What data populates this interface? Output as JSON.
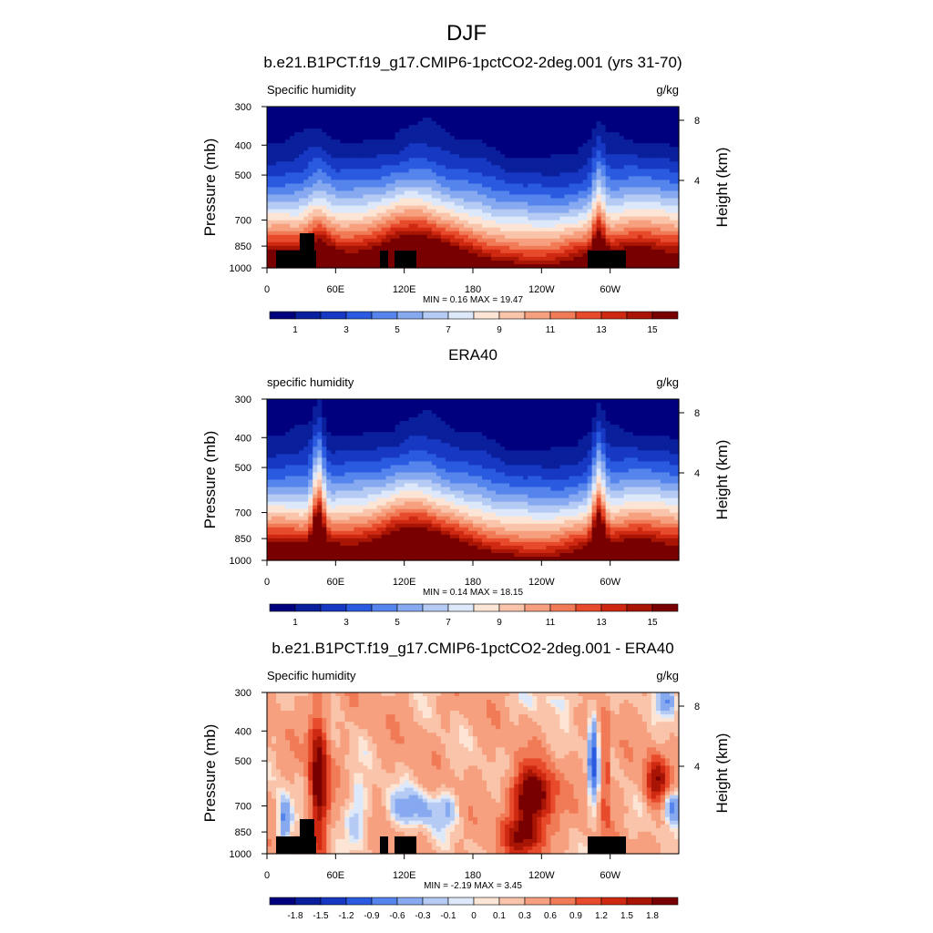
{
  "figure": {
    "title": "DJF"
  },
  "chart_data": [
    {
      "type": "heatmap",
      "title": "b.e21.B1PCT.f19_g17.CMIP6-1pctCO2-2deg.001 (yrs 31-70)",
      "left_label": "Specific humidity",
      "right_label": "g/kg",
      "ylabel": "Pressure (mb)",
      "y2label": "Height (km)",
      "yticks": [
        300,
        400,
        500,
        700,
        850,
        1000
      ],
      "y2ticks": [
        "8",
        "4"
      ],
      "xticks": [
        "0",
        "60E",
        "120E",
        "180",
        "120W",
        "60W"
      ],
      "stats": "MIN =   0.16  MAX =  19.47",
      "colorbar_labels": [
        "1",
        "3",
        "5",
        "7",
        "9",
        "11",
        "13",
        "15"
      ],
      "field": "full"
    },
    {
      "type": "heatmap",
      "title": "ERA40",
      "left_label": "specific humidity",
      "right_label": "g/kg",
      "ylabel": "Pressure (mb)",
      "y2label": "Height (km)",
      "yticks": [
        300,
        400,
        500,
        700,
        850,
        1000
      ],
      "y2ticks": [
        "8",
        "4"
      ],
      "xticks": [
        "0",
        "60E",
        "120E",
        "180",
        "120W",
        "60W"
      ],
      "stats": "MIN =   0.14  MAX =  18.15",
      "colorbar_labels": [
        "1",
        "3",
        "5",
        "7",
        "9",
        "11",
        "13",
        "15"
      ],
      "field": "full"
    },
    {
      "type": "heatmap",
      "title": "b.e21.B1PCT.f19_g17.CMIP6-1pctCO2-2deg.001 - ERA40",
      "left_label": "Specific humidity",
      "right_label": "g/kg",
      "ylabel": "Pressure (mb)",
      "y2label": "Height (km)",
      "yticks": [
        300,
        400,
        500,
        700,
        850,
        1000
      ],
      "y2ticks": [
        "8",
        "4"
      ],
      "xticks": [
        "0",
        "60E",
        "120E",
        "180",
        "120W",
        "60W"
      ],
      "stats": "MIN =  -2.19  MAX =   3.45",
      "colorbar_labels": [
        "-1.8",
        "-1.5",
        "-1.2",
        "-0.9",
        "-0.6",
        "-0.3",
        "-0.1",
        "0",
        "0.1",
        "0.3",
        "0.6",
        "0.9",
        "1.2",
        "1.5",
        "1.8"
      ],
      "field": "diff"
    }
  ],
  "colors": {
    "palette": [
      "#00007f",
      "#0a1f9c",
      "#1638c2",
      "#2a5ae0",
      "#5585ec",
      "#86a9f0",
      "#b5cbf4",
      "#dde9fb",
      "#fde5d6",
      "#f9c4aa",
      "#f6a07f",
      "#f07b56",
      "#e74b2b",
      "#cf2912",
      "#a81505",
      "#780000"
    ],
    "terrain": "#000000"
  }
}
